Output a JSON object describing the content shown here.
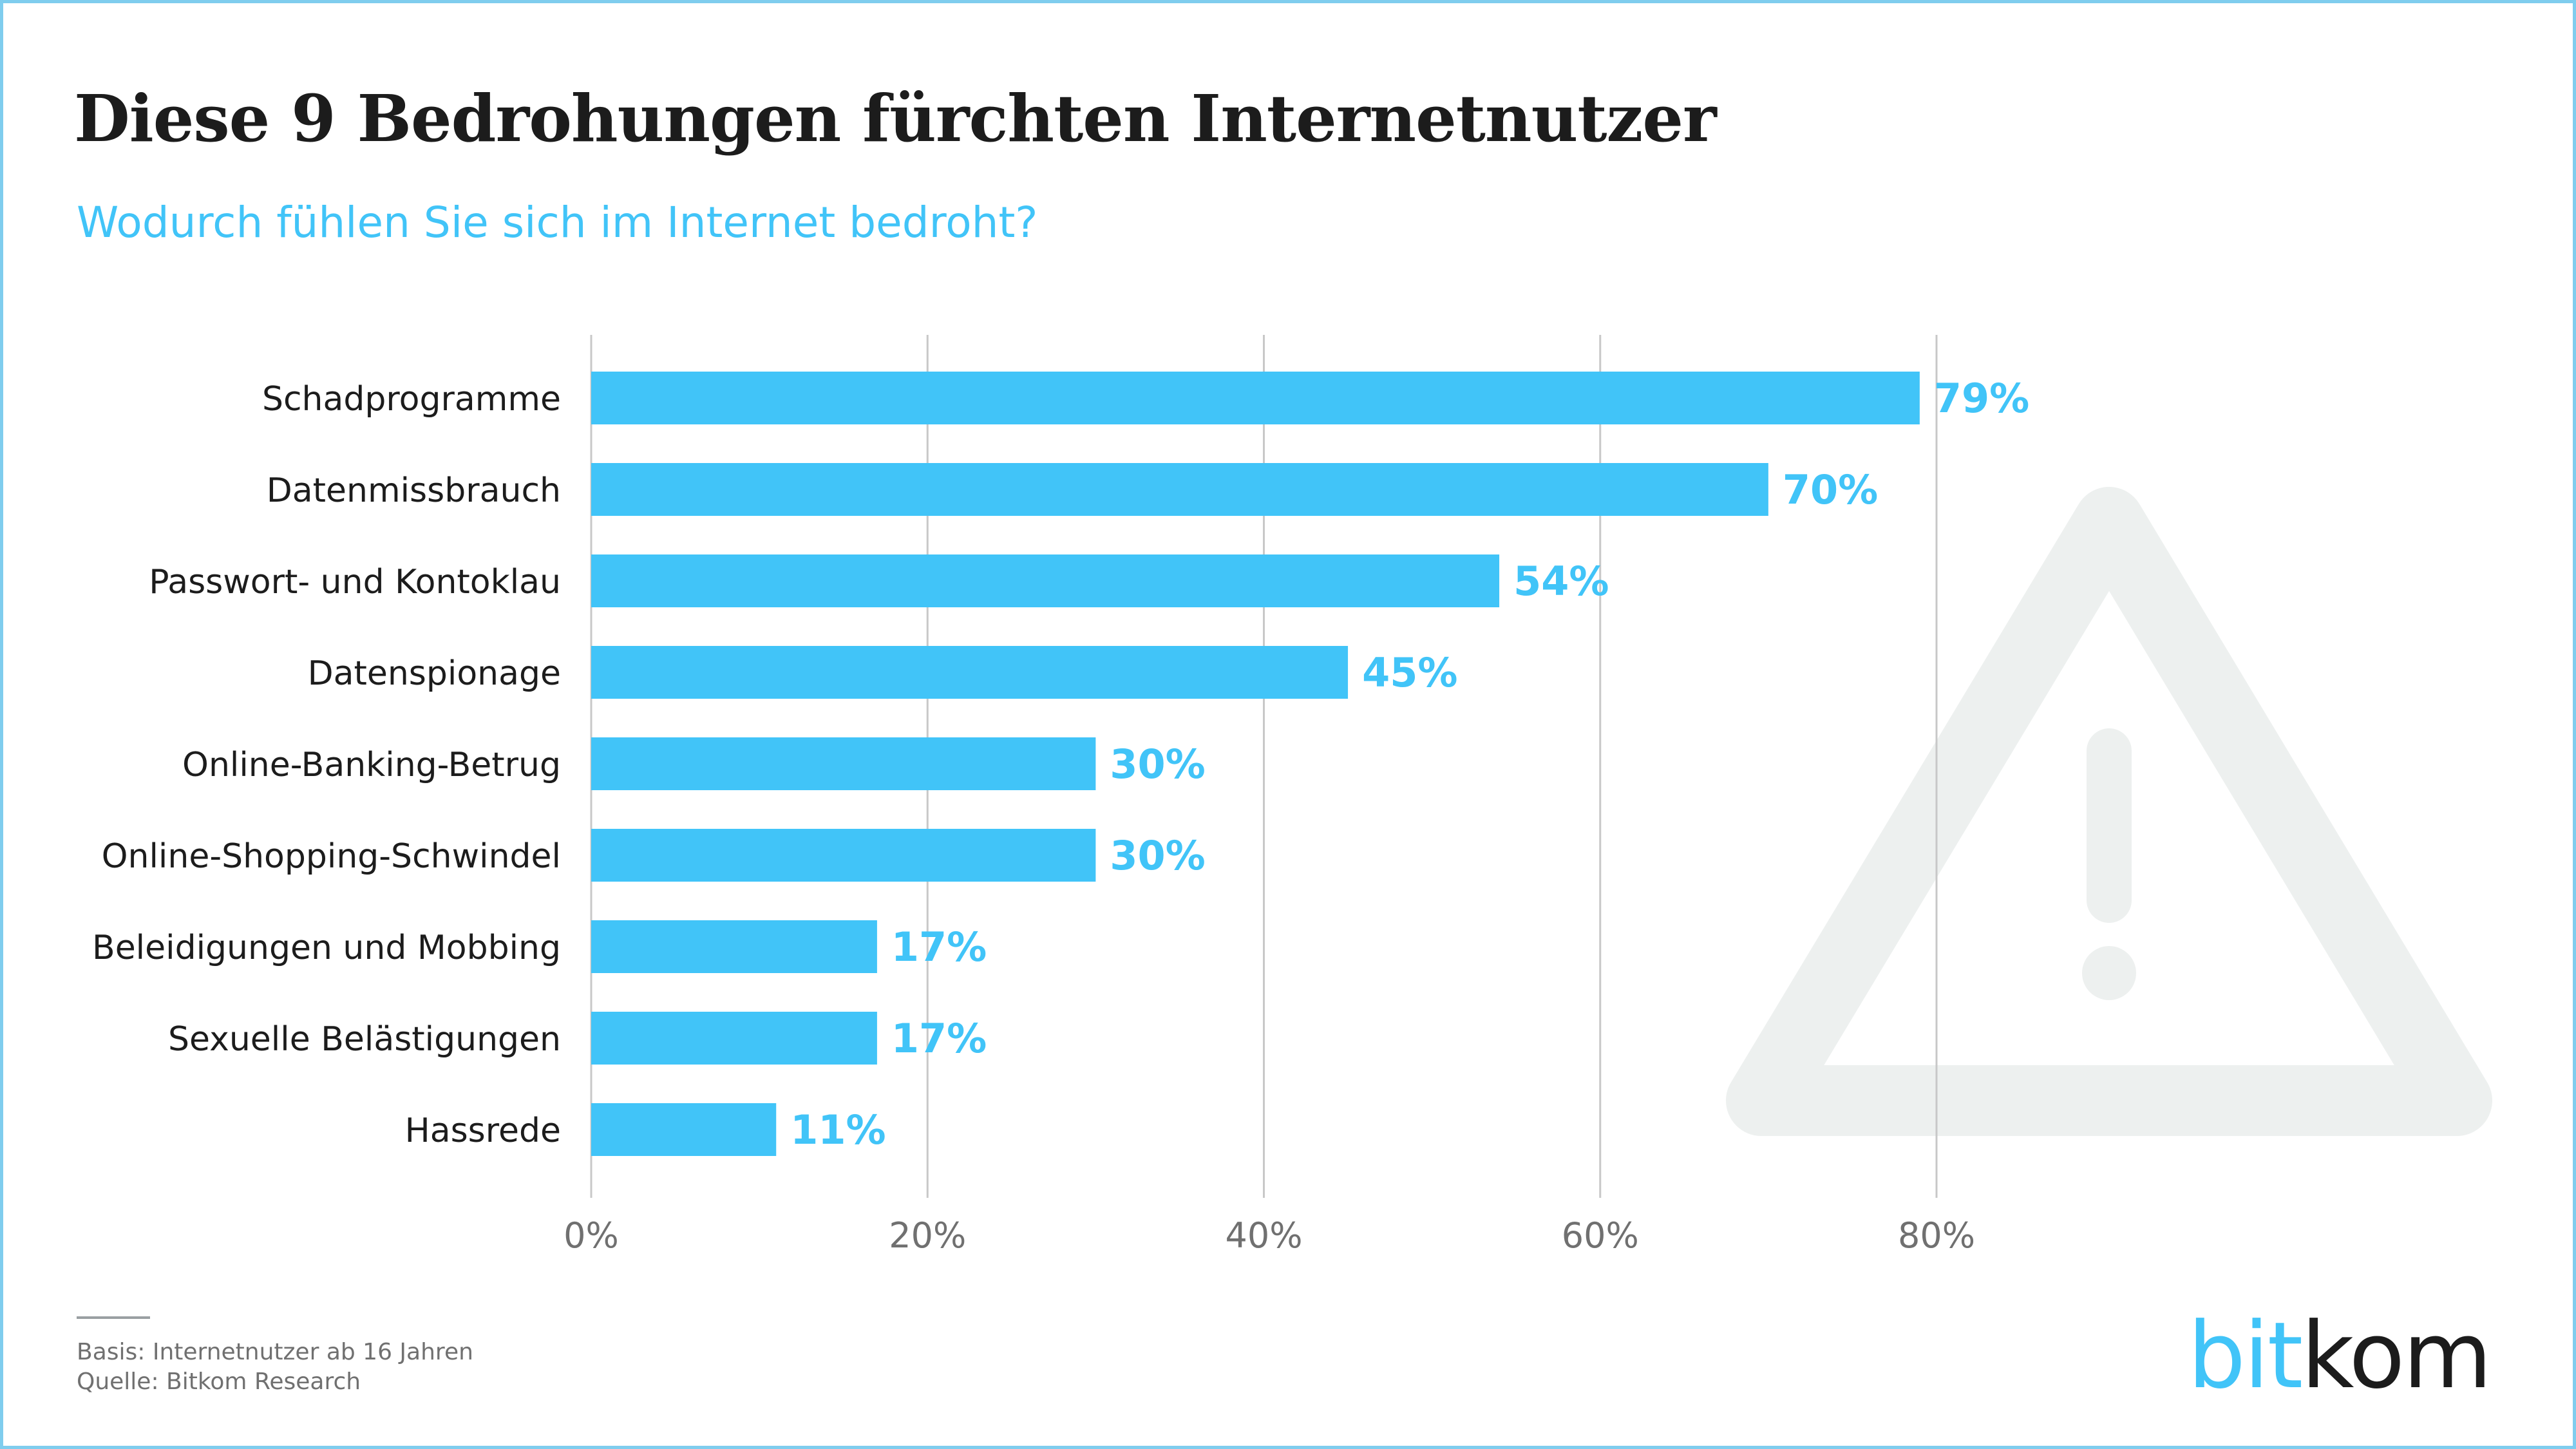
{
  "header": {
    "title": "Diese 9 Bedrohungen fürchten Internetnutzer",
    "subtitle": "Wodurch fühlen Sie sich im Internet bedroht?"
  },
  "chart_data": {
    "type": "bar",
    "orientation": "horizontal",
    "title": "Diese 9 Bedrohungen fürchten Internetnutzer",
    "subtitle": "Wodurch fühlen Sie sich im Internet bedroht?",
    "categories": [
      "Schadprogramme",
      "Datenmissbrauch",
      "Passwort- und Kontoklau",
      "Datenspionage",
      "Online-Banking-Betrug",
      "Online-Shopping-Schwindel",
      "Beleidigungen und Mobbing",
      "Sexuelle Belästigungen",
      "Hassrede"
    ],
    "values": [
      79,
      70,
      54,
      45,
      30,
      30,
      17,
      17,
      11
    ],
    "value_labels": [
      "79%",
      "70%",
      "54%",
      "45%",
      "30%",
      "30%",
      "17%",
      "17%",
      "11%"
    ],
    "xlim": [
      0,
      80
    ],
    "xticks": [
      0,
      20,
      40,
      60,
      80
    ],
    "xtick_labels": [
      "0%",
      "20%",
      "40%",
      "60%",
      "80%"
    ],
    "grid": true,
    "bar_color": "#41c4f8",
    "label_color": "#41c4f8",
    "grid_color": "#c8c8c8"
  },
  "background_icon": "warning-triangle-icon",
  "footer": {
    "basis": "Basis: Internetnutzer ab 16 Jahren",
    "source": "Quelle: Bitkom Research"
  },
  "logo": {
    "part1": "bit",
    "part2": "kom"
  },
  "colors": {
    "accent": "#41c4f8",
    "text": "#1c1c1c",
    "watermark": "#edf0ef"
  }
}
